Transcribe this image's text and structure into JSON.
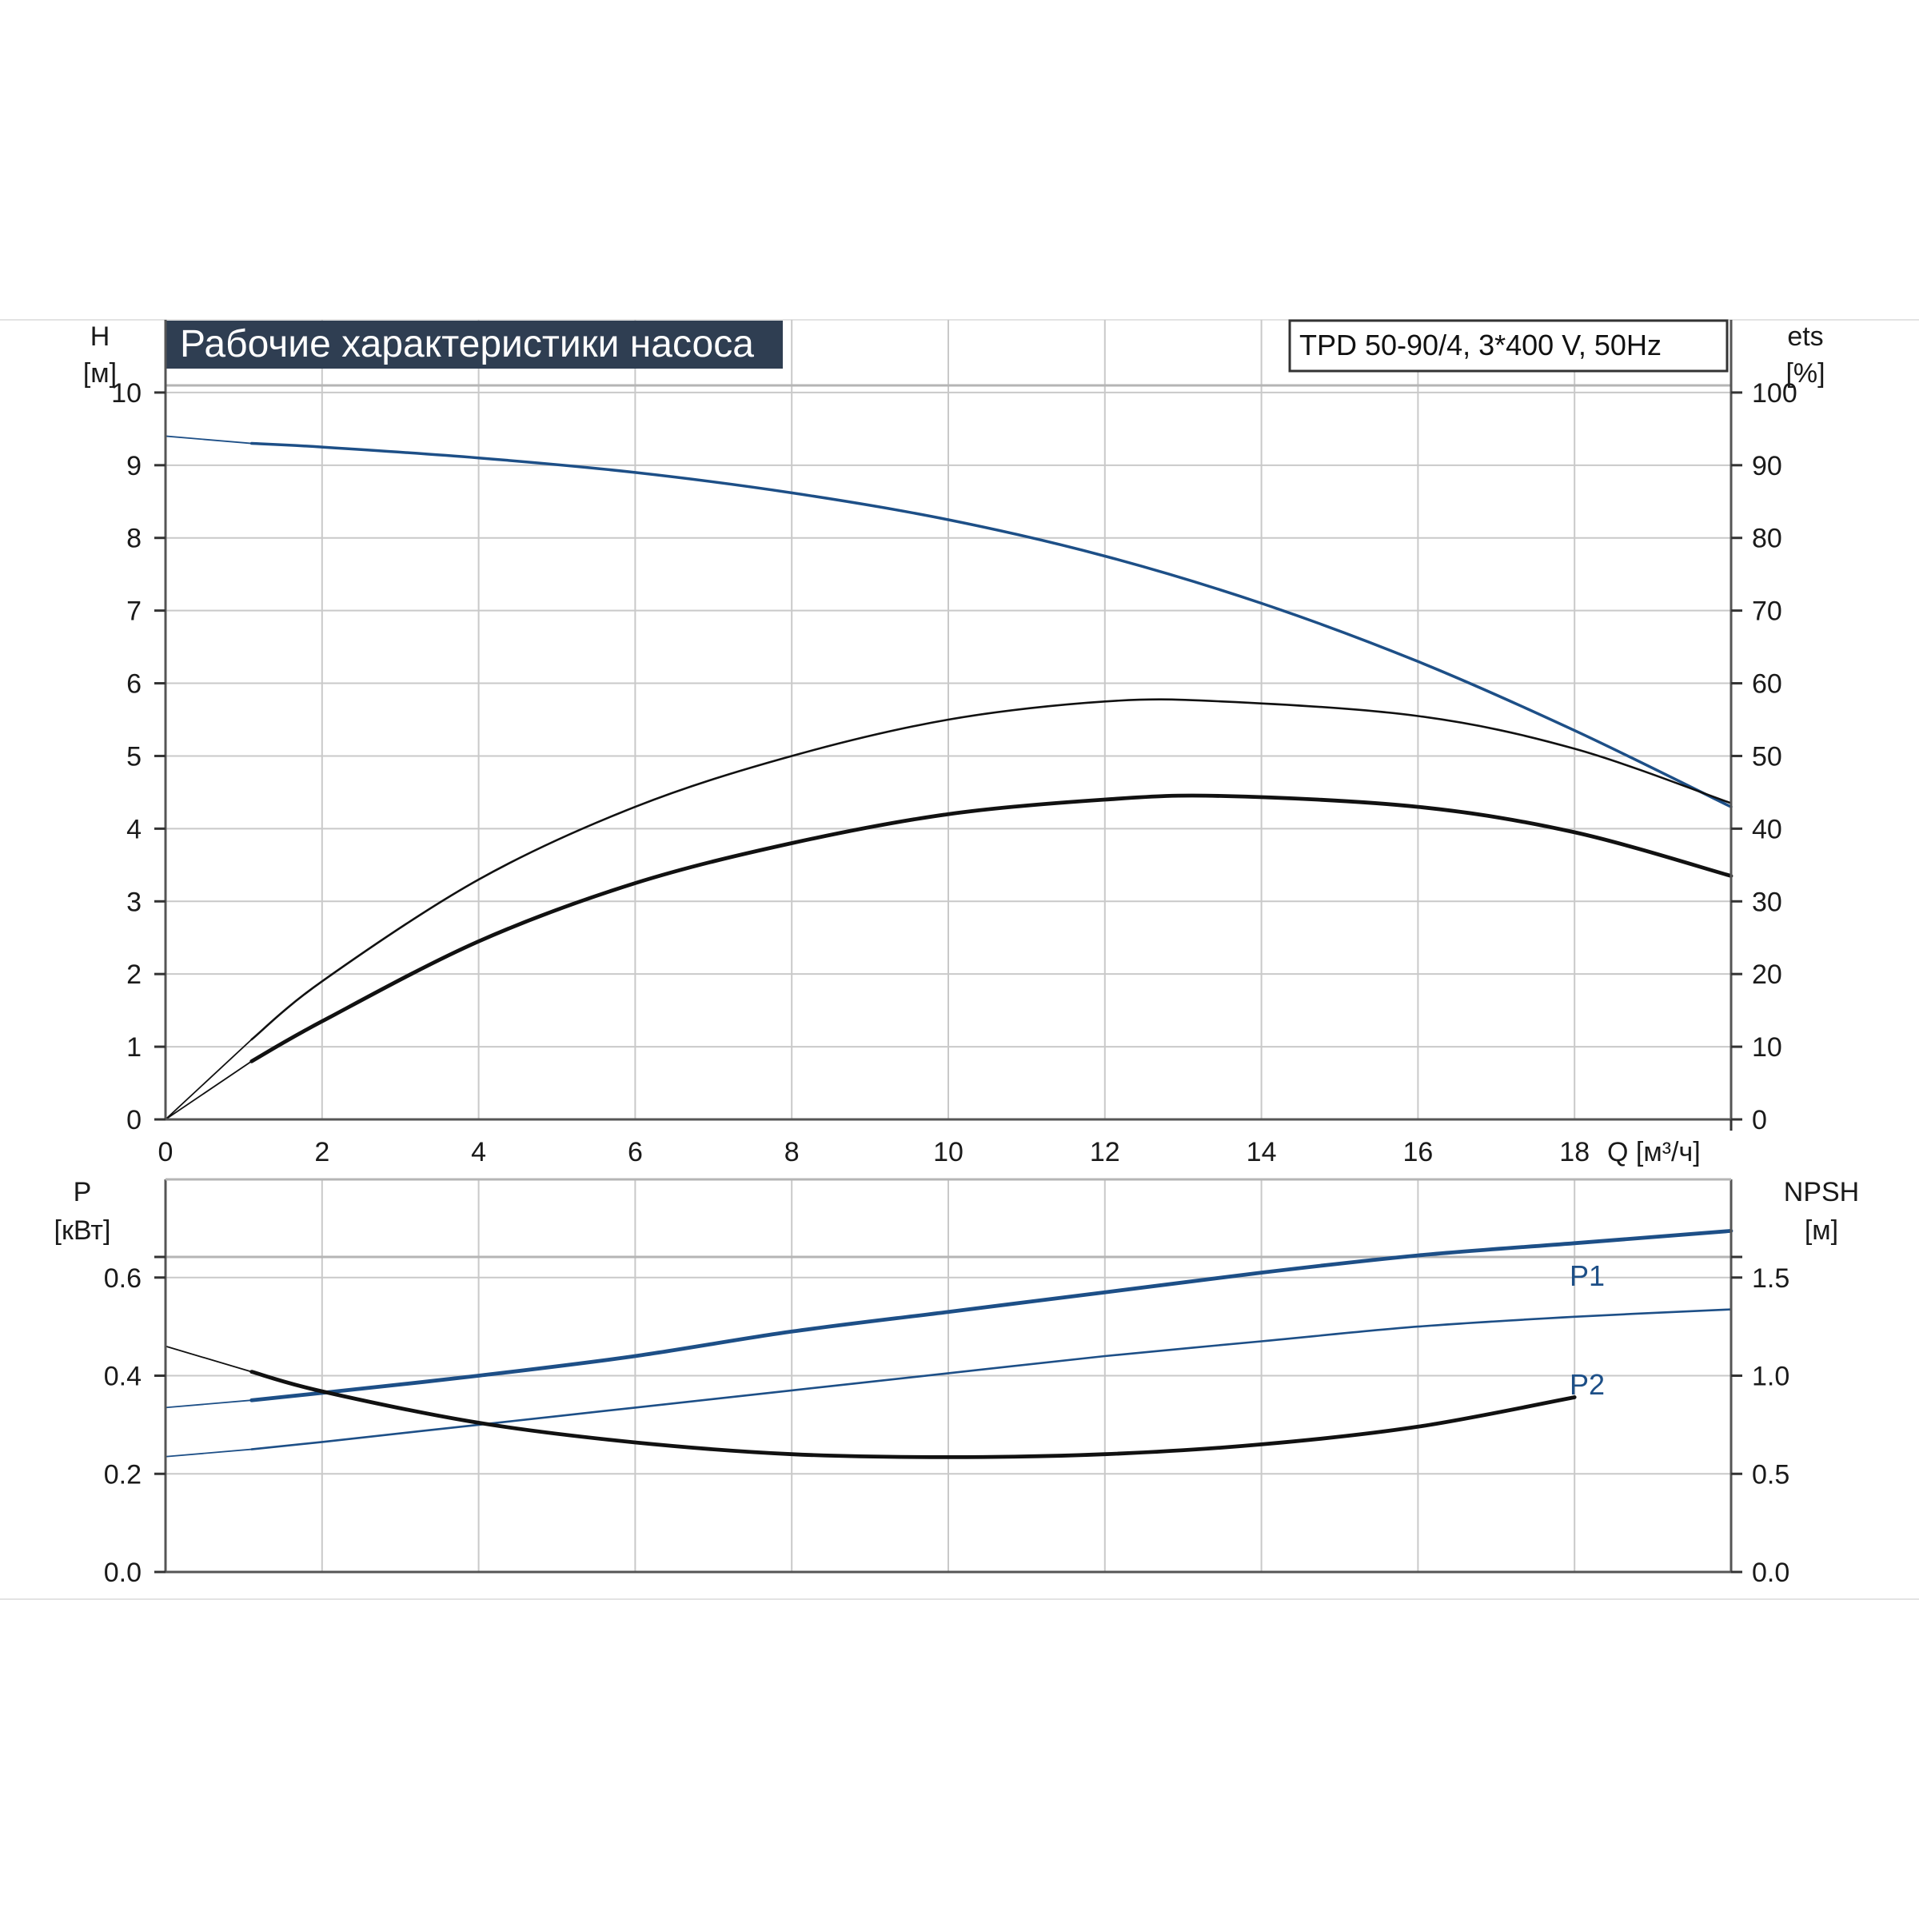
{
  "chart_data": [
    {
      "type": "line",
      "title": "Рабочие характеристики насоса",
      "model": "TPD 50-90/4, 3*400 V, 50Hz",
      "xlabel": "Q [м³/ч]",
      "ylabel_name": "H",
      "ylabel_unit": "[м]",
      "y2label_name": "ets",
      "y2label_unit": "[%]",
      "xlim": [
        0,
        20
      ],
      "ylim": [
        0,
        11
      ],
      "y2lim": [
        0,
        110
      ],
      "xticks": [
        "0",
        "2",
        "4",
        "6",
        "8",
        "10",
        "12",
        "14",
        "16",
        "18"
      ],
      "yticks": [
        "0",
        "1",
        "2",
        "3",
        "4",
        "5",
        "6",
        "7",
        "8",
        "9",
        "10"
      ],
      "y2ticks": [
        "0",
        "10",
        "20",
        "30",
        "40",
        "50",
        "60",
        "70",
        "80",
        "90",
        "100"
      ],
      "grid": true,
      "series": [
        {
          "axis": "left",
          "color": "#1d4f87",
          "x": [
            0,
            1.1,
            2,
            4,
            6,
            8,
            10,
            12,
            14,
            16,
            18,
            20
          ],
          "y": [
            9.4,
            9.3,
            9.25,
            9.1,
            8.9,
            8.62,
            8.25,
            7.75,
            7.1,
            6.3,
            5.35,
            4.3
          ]
        },
        {
          "axis": "right",
          "color": "#111111",
          "x": [
            0,
            1.1,
            2,
            4,
            6,
            8,
            10,
            12,
            13.5,
            16,
            18,
            20
          ],
          "y": [
            0,
            11,
            19,
            33,
            43,
            50,
            55,
            57.5,
            57.5,
            55.5,
            51,
            43.5
          ]
        },
        {
          "axis": "right",
          "color": "#111111",
          "x": [
            0,
            1.1,
            2,
            4,
            6,
            8,
            10,
            12,
            13.5,
            16,
            18,
            20
          ],
          "y": [
            0,
            8,
            13.5,
            24.5,
            32.5,
            38,
            42,
            44,
            44.5,
            43,
            39.5,
            33.5
          ]
        }
      ]
    },
    {
      "type": "line",
      "xlim": [
        0,
        20
      ],
      "ylim": [
        0,
        0.8
      ],
      "y2lim": [
        0,
        2.0
      ],
      "ylabel_name": "P",
      "ylabel_unit": "[кВт]",
      "y2label_name": "NPSH",
      "y2label_unit": "[м]",
      "yticks": [
        "0.0",
        "0.2",
        "0.4",
        "0.6"
      ],
      "y2ticks": [
        "0.0",
        "0.5",
        "1.0",
        "1.5"
      ],
      "grid": true,
      "series": [
        {
          "name": "P1",
          "axis": "left",
          "color": "#1d4f87",
          "x": [
            0,
            1.1,
            2,
            4,
            6,
            8,
            10,
            12,
            14,
            16,
            18,
            20
          ],
          "y": [
            0.335,
            0.35,
            0.365,
            0.4,
            0.44,
            0.49,
            0.53,
            0.57,
            0.61,
            0.645,
            0.67,
            0.695
          ]
        },
        {
          "name": "P2",
          "axis": "left",
          "color": "#1d4f87",
          "x": [
            0,
            1.1,
            2,
            4,
            6,
            8,
            10,
            12,
            14,
            16,
            18,
            20
          ],
          "y": [
            0.235,
            0.25,
            0.265,
            0.3,
            0.335,
            0.37,
            0.405,
            0.44,
            0.47,
            0.5,
            0.52,
            0.535
          ]
        },
        {
          "axis": "right",
          "color": "#111111",
          "x": [
            0,
            1.1,
            2,
            4,
            6,
            8,
            10,
            12,
            14,
            16,
            18
          ],
          "y": [
            1.15,
            1.02,
            0.92,
            0.76,
            0.66,
            0.6,
            0.585,
            0.6,
            0.65,
            0.74,
            0.89
          ]
        }
      ]
    }
  ]
}
